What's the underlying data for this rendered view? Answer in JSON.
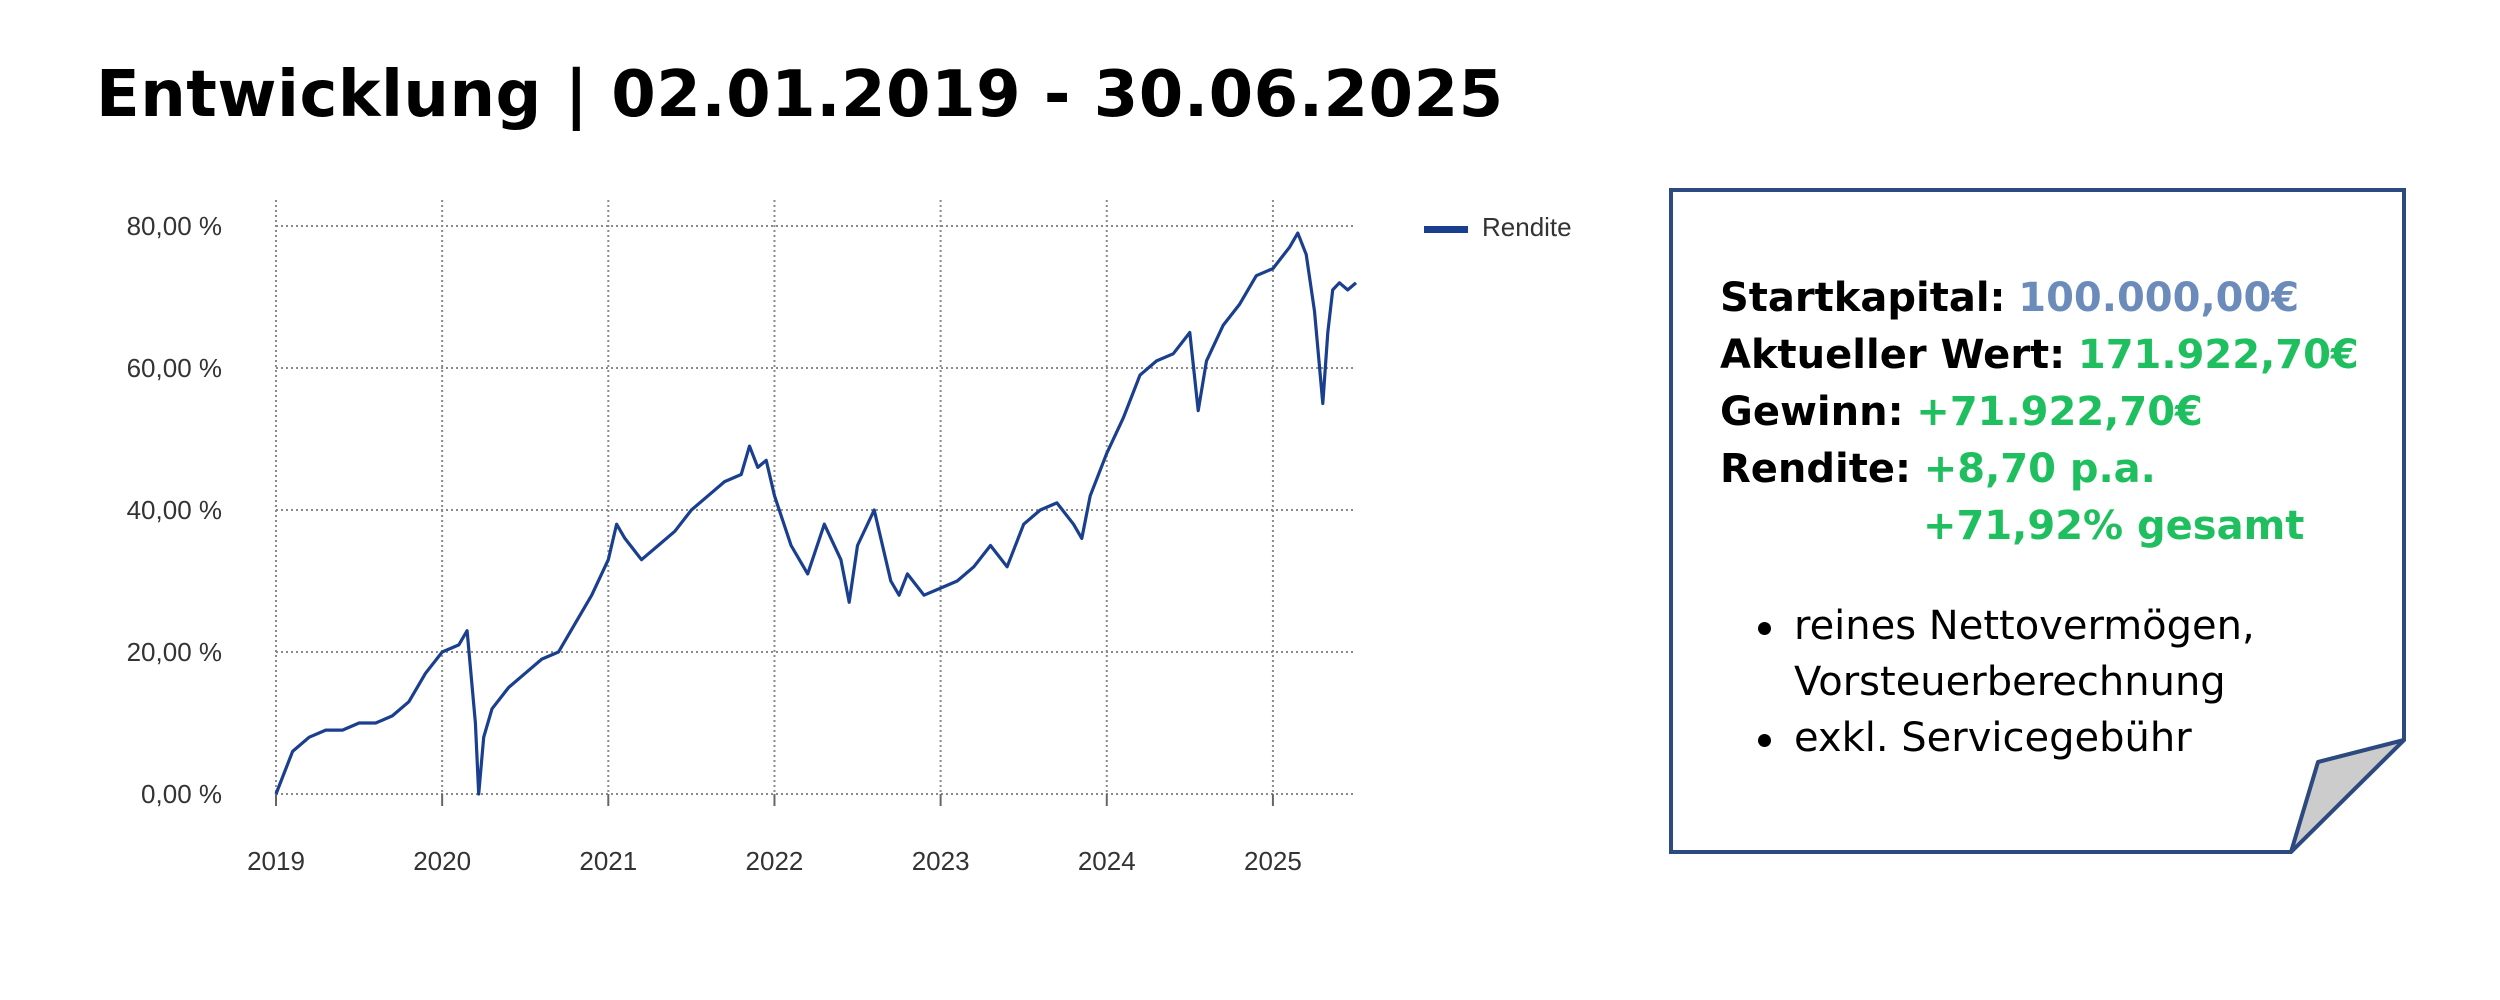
{
  "page": {
    "title": "Entwicklung | 02.01.2019 - 30.06.2025"
  },
  "info_card": {
    "rows": [
      {
        "label": "Startkapital:",
        "value": "100.000,00€"
      },
      {
        "label": "Aktueller Wert:",
        "value": "171.922,70€"
      },
      {
        "label": "Gewinn:",
        "value": "+71.922,70€"
      },
      {
        "label": "Rendite:",
        "value": "+8,70 p.a."
      },
      {
        "label": "",
        "value": "+71,92% gesamt"
      }
    ],
    "bullets": [
      "reines Nettovermögen, Vorsteuerberechnung",
      "exkl. Servicegebühr"
    ],
    "colors": {
      "start_value": "#6b8cba",
      "gain_values": "#1fbf5f",
      "border": "#2c4a80",
      "fold": "#cccccc"
    }
  },
  "chart_data": {
    "type": "line",
    "title": "",
    "xlabel": "",
    "ylabel": "",
    "x_ticks": [
      "2019",
      "2020",
      "2021",
      "2022",
      "2023",
      "2024",
      "2025"
    ],
    "y_ticks": [
      "0,00 %",
      "20,00 %",
      "40,00 %",
      "60,00 %",
      "80,00 %"
    ],
    "xlim": [
      2019.0,
      2025.5
    ],
    "ylim": [
      0,
      80
    ],
    "grid": true,
    "legend_position": "top-right",
    "line_color": "#1a3f8f",
    "series": [
      {
        "name": "Rendite",
        "x": [
          2019.0,
          2019.1,
          2019.2,
          2019.3,
          2019.4,
          2019.5,
          2019.6,
          2019.7,
          2019.8,
          2019.9,
          2020.0,
          2020.1,
          2020.15,
          2020.2,
          2020.22,
          2020.25,
          2020.3,
          2020.4,
          2020.5,
          2020.6,
          2020.7,
          2020.8,
          2020.9,
          2021.0,
          2021.05,
          2021.1,
          2021.2,
          2021.3,
          2021.4,
          2021.5,
          2021.6,
          2021.7,
          2021.8,
          2021.85,
          2021.9,
          2021.95,
          2022.0,
          2022.1,
          2022.2,
          2022.3,
          2022.4,
          2022.45,
          2022.5,
          2022.6,
          2022.7,
          2022.75,
          2022.8,
          2022.9,
          2023.0,
          2023.1,
          2023.2,
          2023.3,
          2023.4,
          2023.5,
          2023.6,
          2023.7,
          2023.8,
          2023.85,
          2023.9,
          2024.0,
          2024.1,
          2024.2,
          2024.3,
          2024.4,
          2024.5,
          2024.55,
          2024.6,
          2024.7,
          2024.8,
          2024.9,
          2025.0,
          2025.1,
          2025.15,
          2025.2,
          2025.25,
          2025.3,
          2025.33,
          2025.36,
          2025.4,
          2025.45,
          2025.5
        ],
        "y": [
          0,
          6,
          8,
          9,
          9,
          10,
          10,
          11,
          13,
          17,
          20,
          21,
          23,
          10,
          0,
          8,
          12,
          15,
          17,
          19,
          20,
          24,
          28,
          33,
          38,
          36,
          33,
          35,
          37,
          40,
          42,
          44,
          45,
          49,
          46,
          47,
          42,
          35,
          31,
          38,
          33,
          27,
          35,
          40,
          30,
          28,
          31,
          28,
          29,
          30,
          32,
          35,
          32,
          38,
          40,
          41,
          38,
          36,
          42,
          48,
          53,
          59,
          61,
          62,
          65,
          54,
          61,
          66,
          69,
          73,
          74,
          77,
          79,
          76,
          68,
          55,
          65,
          71,
          72,
          71,
          72
        ]
      }
    ]
  }
}
